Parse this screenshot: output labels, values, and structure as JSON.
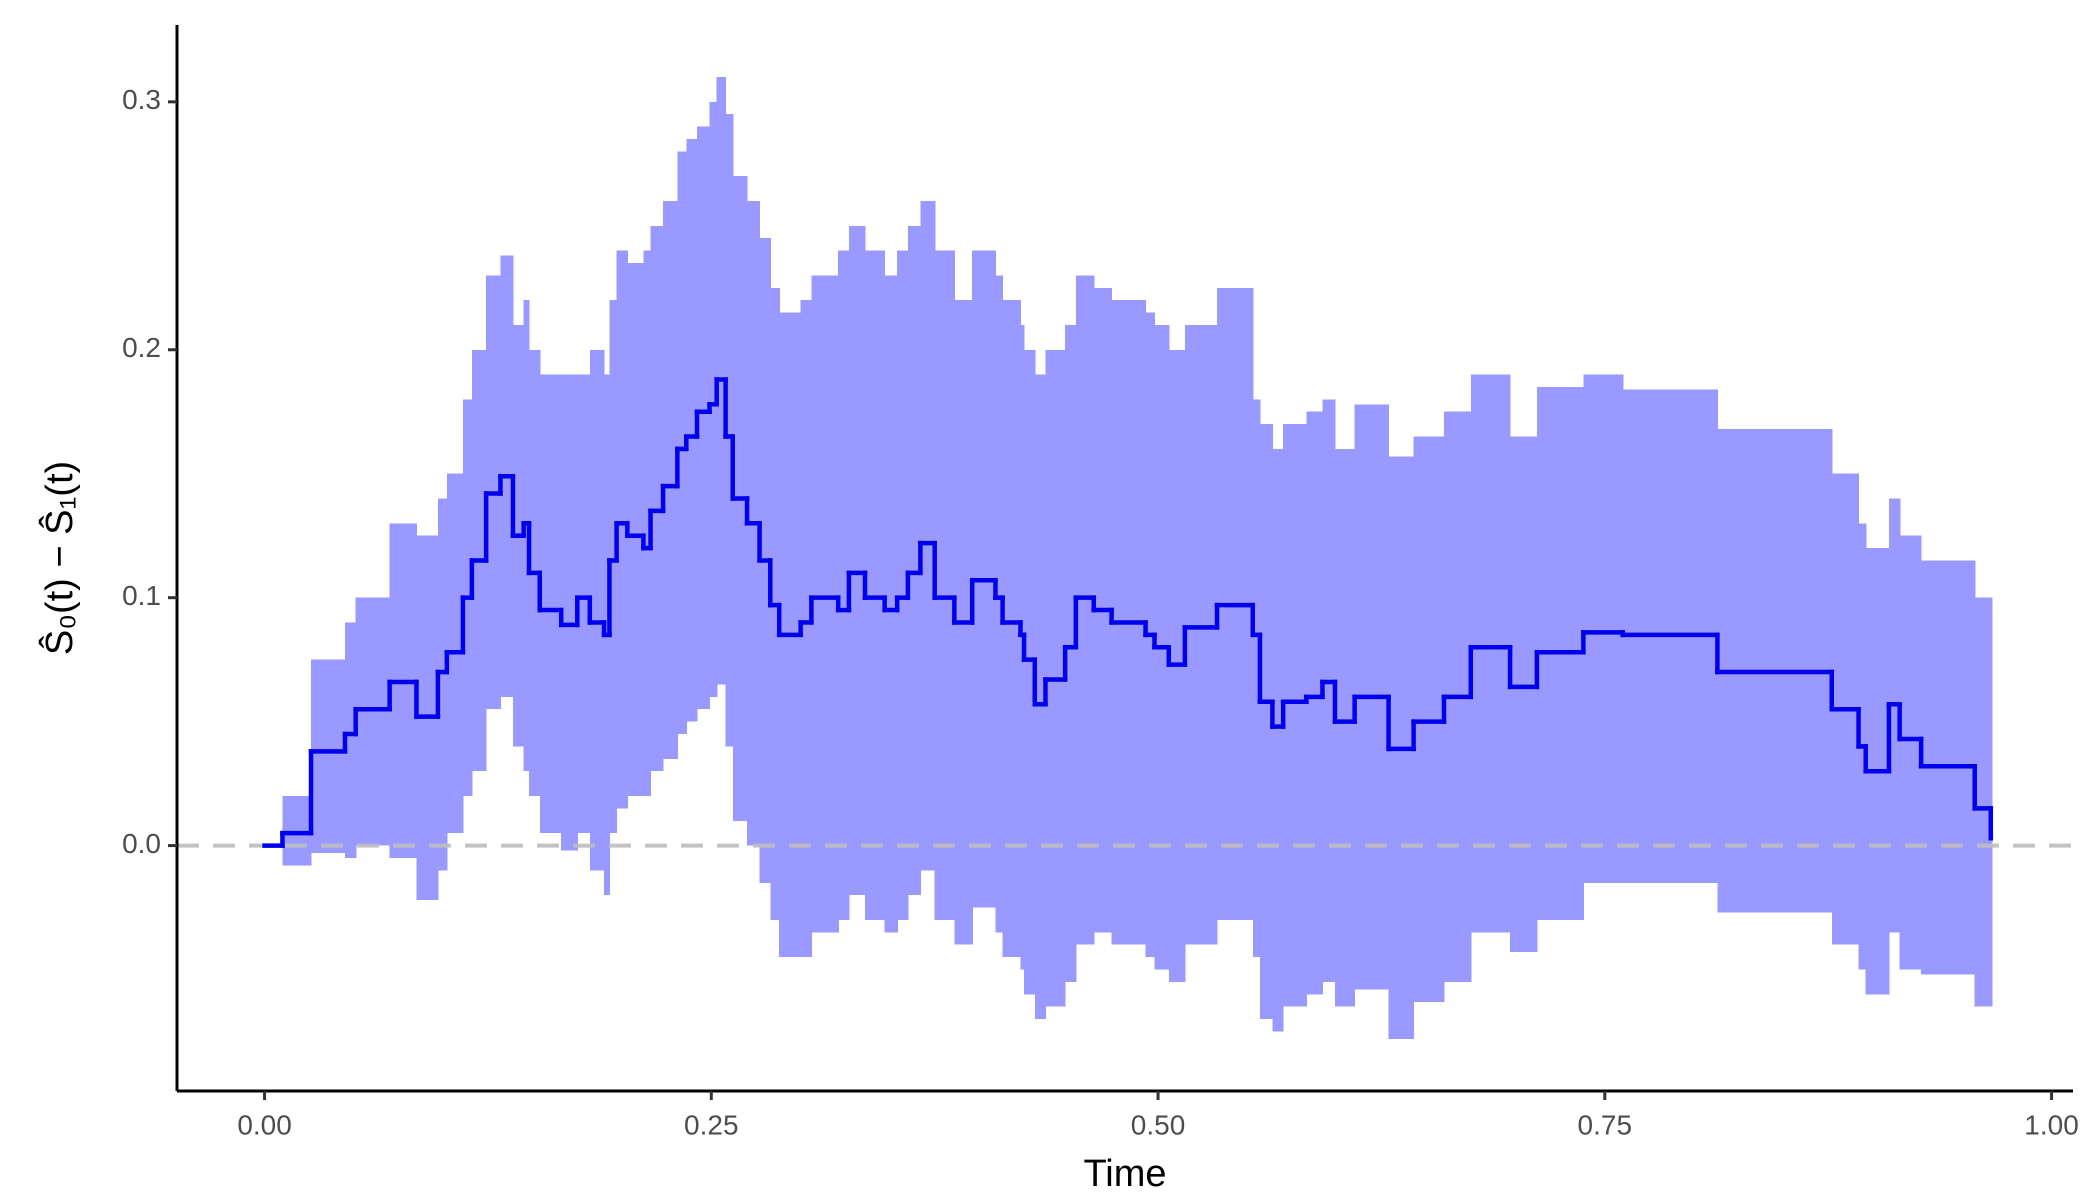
{
  "chart_data": {
    "type": "step",
    "x_label": "Time",
    "y_label": "Ŝ₀(t) − Ŝ₁(t)",
    "xlim": [
      -0.049,
      1.012
    ],
    "ylim": [
      -0.099,
      0.331
    ],
    "xticks": [
      {
        "value": 0,
        "label": "0.00"
      },
      {
        "value": 0.25,
        "label": "0.25"
      },
      {
        "value": 0.5,
        "label": "0.50"
      },
      {
        "value": 0.75,
        "label": "0.75"
      },
      {
        "value": 1,
        "label": "1.00"
      }
    ],
    "yticks": [
      {
        "value": 0,
        "label": "0.0"
      },
      0.1,
      0.2,
      0.3
    ],
    "hline": 0,
    "hline_color": "#bebebe",
    "x": [
      0,
      0.01,
      0.026,
      0.045,
      0.051,
      0.07,
      0.085,
      0.097,
      0.102,
      0.111,
      0.116,
      0.124,
      0.132,
      0.139,
      0.145,
      0.148,
      0.154,
      0.166,
      0.175,
      0.182,
      0.19,
      0.193,
      0.197,
      0.203,
      0.212,
      0.216,
      0.223,
      0.231,
      0.236,
      0.242,
      0.249,
      0.253,
      0.258,
      0.262,
      0.27,
      0.277,
      0.283,
      0.288,
      0.3,
      0.306,
      0.321,
      0.327,
      0.336,
      0.347,
      0.354,
      0.36,
      0.367,
      0.375,
      0.386,
      0.396,
      0.409,
      0.413,
      0.423,
      0.425,
      0.431,
      0.437,
      0.448,
      0.454,
      0.464,
      0.474,
      0.493,
      0.498,
      0.506,
      0.515,
      0.533,
      0.553,
      0.557,
      0.564,
      0.57,
      0.583,
      0.592,
      0.599,
      0.61,
      0.629,
      0.643,
      0.66,
      0.675,
      0.697,
      0.712,
      0.738,
      0.76,
      0.813,
      0.877,
      0.892,
      0.896,
      0.909,
      0.915,
      0.927,
      0.957,
      0.966
    ],
    "series": [
      {
        "color": "#0000ee",
        "values": [
          0,
          0.005,
          0.038,
          0.045,
          0.055,
          0.066,
          0.052,
          0.07,
          0.078,
          0.1,
          0.115,
          0.142,
          0.149,
          0.125,
          0.13,
          0.11,
          0.095,
          0.089,
          0.1,
          0.09,
          0.085,
          0.115,
          0.13,
          0.125,
          0.12,
          0.135,
          0.145,
          0.16,
          0.165,
          0.175,
          0.178,
          0.188,
          0.165,
          0.14,
          0.13,
          0.115,
          0.097,
          0.085,
          0.09,
          0.1,
          0.095,
          0.11,
          0.1,
          0.095,
          0.1,
          0.11,
          0.122,
          0.1,
          0.09,
          0.107,
          0.1,
          0.09,
          0.085,
          0.075,
          0.057,
          0.067,
          0.08,
          0.1,
          0.095,
          0.09,
          0.085,
          0.08,
          0.073,
          0.088,
          0.097,
          0.085,
          0.058,
          0.048,
          0.058,
          0.06,
          0.066,
          0.05,
          0.06,
          0.039,
          0.05,
          0.06,
          0.08,
          0.064,
          0.078,
          0.086,
          0.085,
          0.07,
          0.055,
          0.04,
          0.03,
          0.057,
          0.043,
          0.032,
          0.015,
          0.003
        ]
      }
    ],
    "band": {
      "color": "#9999ff",
      "lower": [
        0,
        -0.008,
        -0.003,
        -0.005,
        0,
        -0.005,
        -0.022,
        -0.01,
        0.005,
        0.02,
        0.03,
        0.055,
        0.06,
        0.04,
        0.03,
        0.02,
        0.005,
        -0.002,
        0.005,
        -0.01,
        -0.02,
        0.005,
        0.015,
        0.02,
        0.02,
        0.03,
        0.035,
        0.045,
        0.05,
        0.055,
        0.06,
        0.065,
        0.04,
        0.01,
        0,
        -0.015,
        -0.03,
        -0.045,
        -0.045,
        -0.035,
        -0.03,
        -0.02,
        -0.03,
        -0.035,
        -0.03,
        -0.02,
        -0.01,
        -0.03,
        -0.04,
        -0.025,
        -0.035,
        -0.045,
        -0.05,
        -0.06,
        -0.07,
        -0.065,
        -0.055,
        -0.04,
        -0.035,
        -0.04,
        -0.045,
        -0.05,
        -0.055,
        -0.04,
        -0.03,
        -0.045,
        -0.07,
        -0.075,
        -0.065,
        -0.06,
        -0.055,
        -0.065,
        -0.058,
        -0.078,
        -0.063,
        -0.055,
        -0.035,
        -0.043,
        -0.03,
        -0.015,
        -0.015,
        -0.027,
        -0.04,
        -0.05,
        -0.06,
        -0.035,
        -0.05,
        -0.052,
        -0.065,
        -0.065
      ],
      "upper": [
        0,
        0.02,
        0.075,
        0.09,
        0.1,
        0.13,
        0.125,
        0.14,
        0.15,
        0.18,
        0.2,
        0.23,
        0.238,
        0.21,
        0.22,
        0.2,
        0.19,
        0.19,
        0.19,
        0.2,
        0.19,
        0.22,
        0.24,
        0.235,
        0.24,
        0.25,
        0.26,
        0.28,
        0.285,
        0.29,
        0.3,
        0.31,
        0.295,
        0.27,
        0.26,
        0.245,
        0.225,
        0.215,
        0.22,
        0.23,
        0.24,
        0.25,
        0.24,
        0.23,
        0.24,
        0.25,
        0.26,
        0.24,
        0.22,
        0.24,
        0.23,
        0.22,
        0.21,
        0.2,
        0.19,
        0.2,
        0.21,
        0.23,
        0.225,
        0.22,
        0.215,
        0.21,
        0.2,
        0.21,
        0.225,
        0.18,
        0.17,
        0.16,
        0.17,
        0.175,
        0.18,
        0.16,
        0.178,
        0.157,
        0.165,
        0.175,
        0.19,
        0.165,
        0.185,
        0.19,
        0.184,
        0.168,
        0.15,
        0.13,
        0.12,
        0.14,
        0.125,
        0.115,
        0.1,
        0.1
      ]
    }
  }
}
